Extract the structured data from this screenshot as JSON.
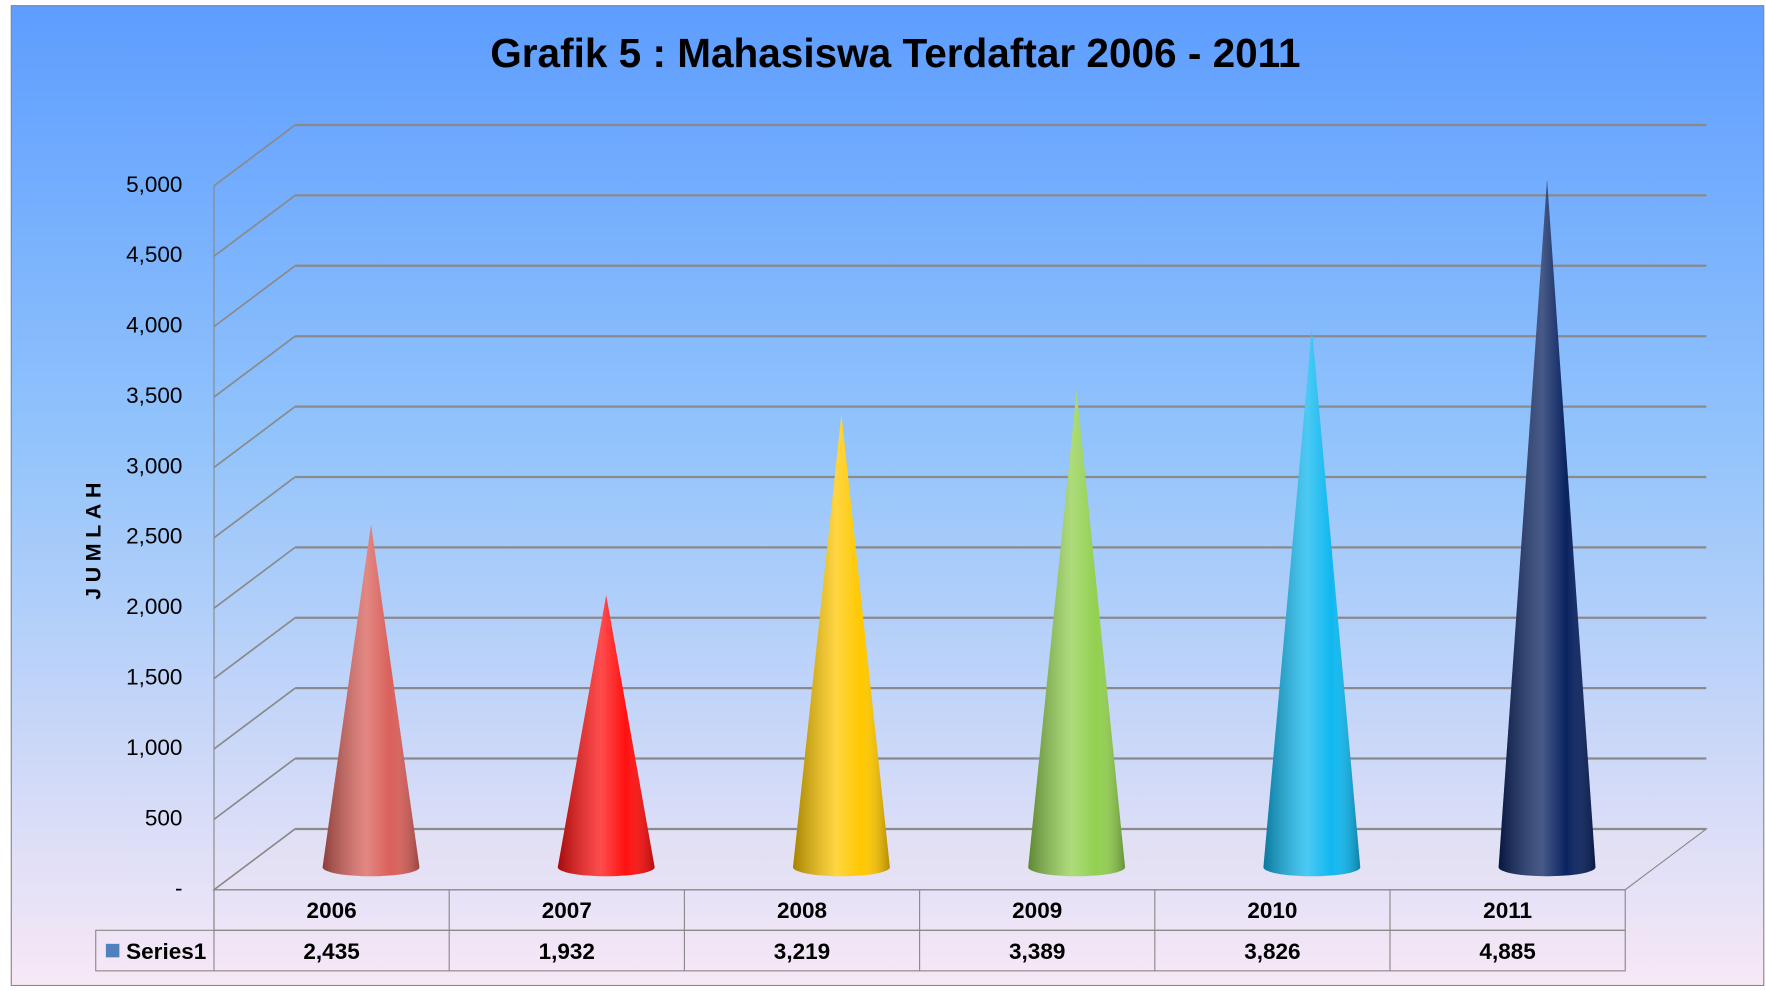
{
  "chart_data": {
    "type": "cone",
    "title": "Grafik 5 : Mahasiswa Terdaftar 2006 - 2011",
    "y_label": "JUMLAH",
    "categories": [
      "2006",
      "2007",
      "2008",
      "2009",
      "2010",
      "2011"
    ],
    "series": [
      {
        "name": "Series1",
        "color": "#4f81bd",
        "colors": [
          "#d9605a",
          "#ff1010",
          "#ffc800",
          "#92d050",
          "#10b8f0",
          "#0a2360"
        ],
        "values": [
          2435,
          1932,
          3219,
          3389,
          3826,
          4885
        ],
        "value_labels": [
          "2,435",
          "1,932",
          "3,219",
          "3,389",
          "3,826",
          "4,885"
        ]
      }
    ],
    "ylim": [
      0,
      5000
    ],
    "yticks": [
      {
        "value": 0,
        "label": "-"
      },
      500,
      {
        "value": 1000,
        "label": "1,000"
      },
      {
        "value": 1500,
        "label": "1,500"
      },
      {
        "value": 2000,
        "label": "2,000"
      },
      {
        "value": 2500,
        "label": "2,500"
      },
      {
        "value": 3000,
        "label": "3,000"
      },
      {
        "value": 3500,
        "label": "3,500"
      },
      {
        "value": 4000,
        "label": "4,000"
      },
      {
        "value": 4500,
        "label": "4,500"
      },
      {
        "value": 5000,
        "label": "5,000"
      }
    ],
    "grid": true,
    "data_table": true
  }
}
